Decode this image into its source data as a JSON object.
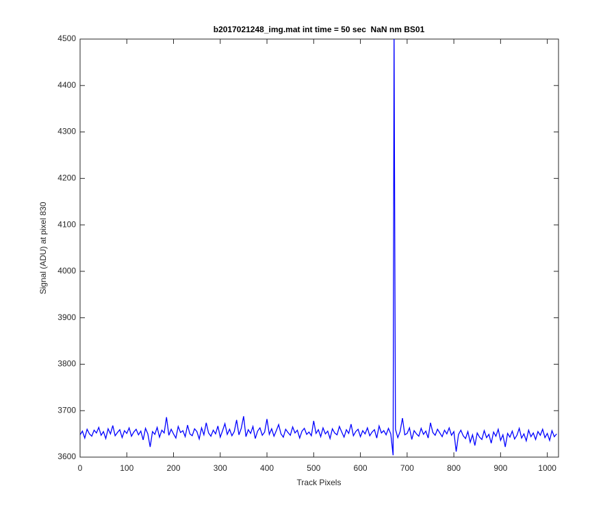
{
  "chart_data": {
    "type": "line",
    "title": "b2017021248_img.mat int time = 50 sec  NaN nm BS01",
    "xlabel": "Track Pixels",
    "ylabel": "Signal (ADU) at pixel 830",
    "xlim": [
      0,
      1024
    ],
    "ylim": [
      3600,
      4500
    ],
    "xticks": [
      0,
      100,
      200,
      300,
      400,
      500,
      600,
      700,
      800,
      900,
      1000
    ],
    "yticks": [
      3600,
      3700,
      3800,
      3900,
      4000,
      4100,
      4200,
      4300,
      4400,
      4500
    ],
    "grid": false,
    "x": [
      0,
      5,
      10,
      15,
      20,
      25,
      30,
      35,
      40,
      45,
      50,
      55,
      60,
      65,
      70,
      75,
      80,
      85,
      90,
      95,
      100,
      105,
      110,
      115,
      120,
      125,
      130,
      135,
      140,
      145,
      150,
      155,
      160,
      165,
      170,
      175,
      180,
      185,
      190,
      195,
      200,
      205,
      210,
      215,
      220,
      225,
      230,
      235,
      240,
      245,
      250,
      255,
      260,
      265,
      270,
      275,
      280,
      285,
      290,
      295,
      300,
      305,
      310,
      315,
      320,
      325,
      330,
      335,
      340,
      345,
      350,
      355,
      360,
      365,
      370,
      375,
      380,
      385,
      390,
      395,
      400,
      405,
      410,
      415,
      420,
      425,
      430,
      435,
      440,
      445,
      450,
      455,
      460,
      465,
      470,
      475,
      480,
      485,
      490,
      495,
      500,
      505,
      510,
      515,
      520,
      525,
      530,
      535,
      540,
      545,
      550,
      555,
      560,
      565,
      570,
      575,
      580,
      585,
      590,
      595,
      600,
      605,
      610,
      615,
      620,
      625,
      630,
      635,
      640,
      645,
      650,
      655,
      660,
      665,
      670,
      672,
      675,
      680,
      685,
      690,
      695,
      700,
      705,
      710,
      715,
      720,
      725,
      730,
      735,
      740,
      745,
      750,
      755,
      760,
      765,
      770,
      775,
      780,
      785,
      790,
      795,
      800,
      805,
      810,
      815,
      820,
      825,
      830,
      835,
      840,
      845,
      850,
      855,
      860,
      865,
      870,
      875,
      880,
      885,
      890,
      895,
      900,
      905,
      910,
      915,
      920,
      925,
      930,
      935,
      940,
      945,
      950,
      955,
      960,
      965,
      970,
      975,
      980,
      985,
      990,
      995,
      1000,
      1005,
      1010,
      1015,
      1020
    ],
    "series": [
      {
        "color": "#0000ff",
        "values": [
          3648,
          3656,
          3641,
          3660,
          3650,
          3645,
          3658,
          3652,
          3664,
          3647,
          3655,
          3640,
          3661,
          3650,
          3668,
          3646,
          3653,
          3659,
          3642,
          3657,
          3651,
          3663,
          3645,
          3654,
          3660,
          3648,
          3656,
          3637,
          3662,
          3650,
          3622,
          3655,
          3649,
          3664,
          3643,
          3658,
          3652,
          3686,
          3647,
          3660,
          3650,
          3641,
          3666,
          3653,
          3657,
          3644,
          3669,
          3650,
          3646,
          3661,
          3655,
          3639,
          3663,
          3648,
          3674,
          3652,
          3645,
          3658,
          3650,
          3667,
          3643,
          3657,
          3672,
          3649,
          3660,
          3646,
          3655,
          3680,
          3648,
          3662,
          3688,
          3644,
          3659,
          3651,
          3666,
          3640,
          3656,
          3663,
          3647,
          3654,
          3682,
          3649,
          3661,
          3645,
          3657,
          3670,
          3650,
          3643,
          3660,
          3653,
          3647,
          3665,
          3652,
          3658,
          3641,
          3656,
          3662,
          3649,
          3654,
          3646,
          3678,
          3651,
          3659,
          3644,
          3663,
          3650,
          3656,
          3640,
          3661,
          3652,
          3648,
          3666,
          3654,
          3643,
          3659,
          3651,
          3671,
          3646,
          3655,
          3660,
          3644,
          3657,
          3650,
          3663,
          3646,
          3654,
          3659,
          3641,
          3667,
          3652,
          3657,
          3648,
          3662,
          3650,
          3604,
          4520,
          3660,
          3642,
          3655,
          3684,
          3648,
          3651,
          3663,
          3638,
          3657,
          3650,
          3645,
          3662,
          3649,
          3656,
          3641,
          3674,
          3653,
          3647,
          3660,
          3652,
          3644,
          3658,
          3650,
          3663,
          3647,
          3655,
          3612,
          3649,
          3658,
          3646,
          3640,
          3655,
          3632,
          3648,
          3625,
          3652,
          3643,
          3638,
          3657,
          3642,
          3649,
          3630,
          3654,
          3645,
          3660,
          3636,
          3648,
          3622,
          3651,
          3643,
          3656,
          3639,
          3647,
          3662,
          3641,
          3650,
          3635,
          3658,
          3644,
          3652,
          3638,
          3655,
          3647,
          3660,
          3642,
          3651,
          3636,
          3657,
          3644,
          3650
        ]
      }
    ]
  }
}
